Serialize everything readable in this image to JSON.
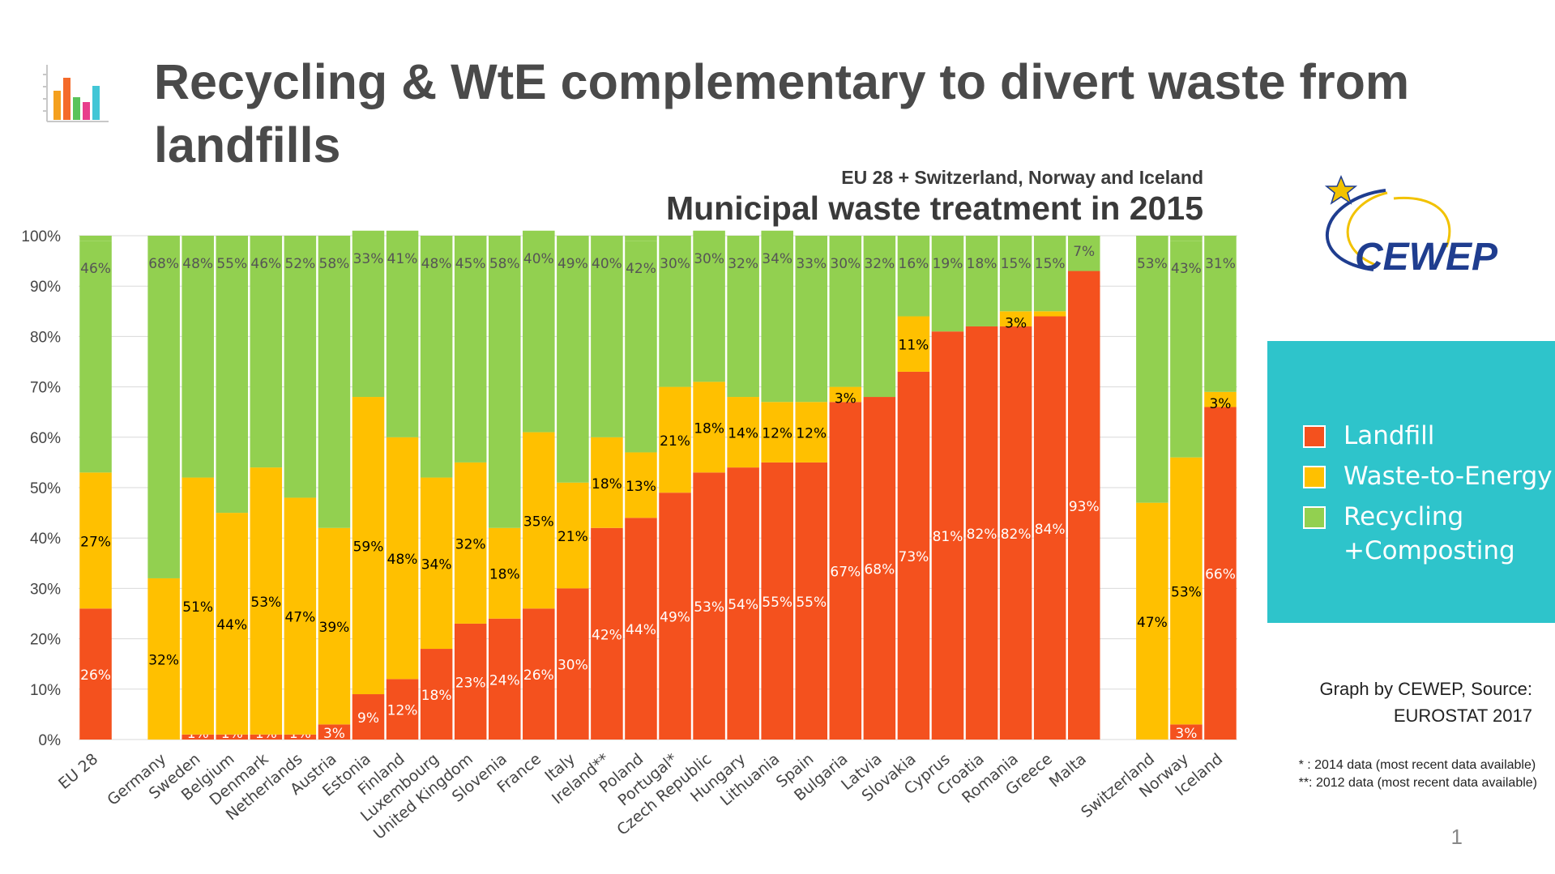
{
  "slide": {
    "title": "Recycling & WtE complementary to divert waste from landfills",
    "page_number": "1",
    "icon": "bar-chart-icon"
  },
  "logo": {
    "text": "CEWEP"
  },
  "source": {
    "line1": "Graph by CEWEP, Source:",
    "line2": "EUROSTAT 2017"
  },
  "notes": {
    "note1": "* : 2014 data (most recent data available)",
    "note2": "**: 2012 data (most recent data available)"
  },
  "legend": {
    "items": [
      {
        "label": "Landfill",
        "color": "#f4511e"
      },
      {
        "label": "Waste-to-Energy",
        "color": "#ffc000"
      },
      {
        "label": "Recycling +Composting",
        "color": "#92d050"
      }
    ]
  },
  "chart_data": {
    "type": "bar",
    "stacked": true,
    "subtitle": "EU 28 + Switzerland, Norway and Iceland",
    "title": "Municipal waste treatment in 2015",
    "ylim": [
      0,
      100
    ],
    "y_ticks": [
      "0%",
      "10%",
      "20%",
      "30%",
      "40%",
      "50%",
      "60%",
      "70%",
      "80%",
      "90%",
      "100%"
    ],
    "grid": true,
    "legend_position": "right",
    "categories": [
      "EU 28",
      "",
      "Germany",
      "Sweden",
      "Belgium",
      "Denmark",
      "Netherlands",
      "Austria",
      "Estonia",
      "Finland",
      "Luxembourg",
      "United Kingdom",
      "Slovenia",
      "France",
      "Italy",
      "Ireland**",
      "Poland",
      "Portugal*",
      "Czech Republic",
      "Hungary",
      "Lithuania",
      "Spain",
      "Bulgaria",
      "Latvia",
      "Slovakia",
      "Cyprus",
      "Croatia",
      "Romania",
      "Greece",
      "Malta",
      "",
      "Switzerland",
      "Norway",
      "Iceland"
    ],
    "series": [
      {
        "name": "Landfill",
        "color": "#f4511e",
        "values": [
          26,
          null,
          0,
          1,
          1,
          1,
          1,
          3,
          9,
          12,
          18,
          23,
          24,
          26,
          30,
          42,
          44,
          49,
          53,
          54,
          55,
          55,
          67,
          68,
          73,
          81,
          82,
          82,
          84,
          93,
          null,
          0,
          3,
          66
        ],
        "labels": [
          "26%",
          "",
          "",
          "1%",
          "1%",
          "1%",
          "1%",
          "3%",
          "9%",
          "12%",
          "18%",
          "23%",
          "24%",
          "26%",
          "30%",
          "42%",
          "44%",
          "49%",
          "53%",
          "54%",
          "55%",
          "55%",
          "67%",
          "68%",
          "73%",
          "81%",
          "82%",
          "82%",
          "84%",
          "93%",
          "",
          "",
          "3%",
          "66%"
        ]
      },
      {
        "name": "Waste-to-Energy",
        "color": "#ffc000",
        "values": [
          27,
          null,
          32,
          51,
          44,
          53,
          47,
          39,
          59,
          48,
          34,
          32,
          18,
          35,
          21,
          18,
          13,
          21,
          18,
          14,
          12,
          12,
          3,
          0,
          11,
          0,
          0,
          3,
          1,
          0,
          null,
          47,
          53,
          3
        ],
        "labels": [
          "27%",
          "",
          "32%",
          "51%",
          "44%",
          "53%",
          "47%",
          "39%",
          "59%",
          "48%",
          "34%",
          "32%",
          "18%",
          "35%",
          "21%",
          "18%",
          "13%",
          "21%",
          "18%",
          "14%",
          "12%",
          "12%",
          "3%",
          "",
          "11%",
          "",
          "",
          "3%",
          "",
          "",
          "",
          "47%",
          "53%",
          "3%"
        ]
      },
      {
        "name": "Recycling +Composting",
        "color": "#92d050",
        "values": [
          46,
          null,
          68,
          48,
          55,
          46,
          52,
          58,
          33,
          41,
          48,
          45,
          58,
          40,
          49,
          40,
          42,
          30,
          30,
          32,
          34,
          33,
          30,
          32,
          16,
          19,
          18,
          15,
          15,
          7,
          null,
          53,
          43,
          31
        ],
        "labels": [
          "46%",
          "",
          "68%",
          "48%",
          "55%",
          "46%",
          "52%",
          "58%",
          "33%",
          "41%",
          "48%",
          "45%",
          "58%",
          "40%",
          "49%",
          "40%",
          "42%",
          "30%",
          "30%",
          "32%",
          "34%",
          "33%",
          "30%",
          "32%",
          "16%",
          "19%",
          "18%",
          "15%",
          "15%",
          "7%",
          "",
          "53%",
          "43%",
          "31%"
        ]
      }
    ]
  }
}
